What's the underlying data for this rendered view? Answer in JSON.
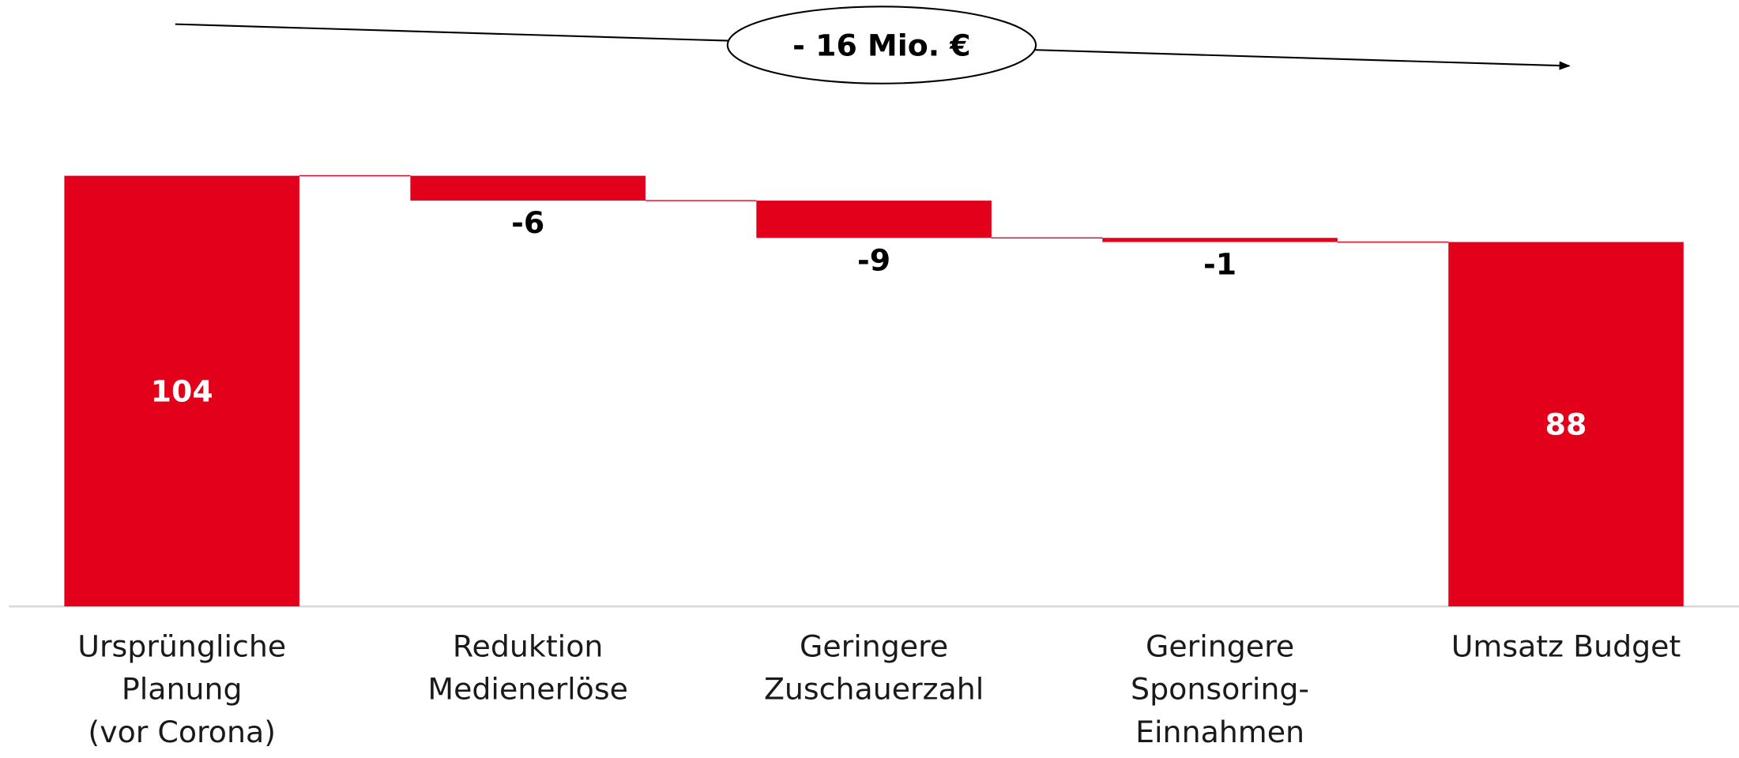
{
  "chart_data": {
    "type": "waterfall",
    "annotation": "- 16 Mio. €",
    "categories": [
      [
        "Ursprüngliche",
        "Planung",
        "(vor Corona)"
      ],
      [
        "Reduktion",
        "Medienerlöse"
      ],
      [
        "Geringere",
        "Zuschauerzahl"
      ],
      [
        "Geringere",
        "Sponsoring-",
        "Einnahmen"
      ],
      [
        "Umsatz Budget"
      ]
    ],
    "values": [
      104,
      -6,
      -9,
      -1,
      88
    ],
    "measure": [
      "absolute",
      "relative",
      "relative",
      "relative",
      "absolute"
    ],
    "color": "#e2001a",
    "ylim": [
      0,
      104
    ]
  }
}
